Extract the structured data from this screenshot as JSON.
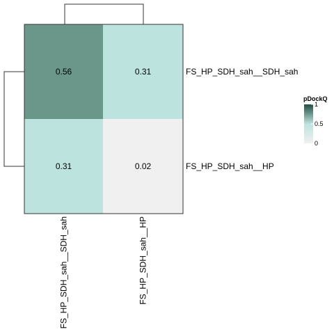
{
  "chart_data": {
    "type": "heatmap",
    "rows": [
      "FS_HP_SDH_sah__SDH_sah",
      "FS_HP_SDH_sah__HP"
    ],
    "columns": [
      "FS_HP_SDH_sah__SDH_sah",
      "FS_HP_SDH_sah__HP"
    ],
    "values": [
      [
        0.56,
        0.31
      ],
      [
        0.31,
        0.02
      ]
    ],
    "value_labels": [
      [
        "0.56",
        "0.31"
      ],
      [
        "0.31",
        "0.02"
      ]
    ],
    "dendrograms": {
      "rows": "two leaves joined by a single branch (left)",
      "columns": "two leaves joined by a single branch (top)"
    },
    "legend": {
      "title": "pDockQ",
      "ticks": [
        {
          "value": 0,
          "label": "0"
        },
        {
          "value": 0.5,
          "label": "0.5"
        },
        {
          "value": 1,
          "label": "1"
        }
      ],
      "range": [
        0,
        1
      ],
      "placement": "right"
    },
    "colors": {
      "low": "#f0f0f0",
      "mid": "#bde3df",
      "high": "#1f4f44"
    }
  }
}
